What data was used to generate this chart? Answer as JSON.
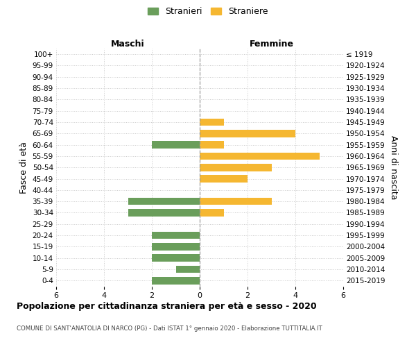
{
  "age_groups": [
    "0-4",
    "5-9",
    "10-14",
    "15-19",
    "20-24",
    "25-29",
    "30-34",
    "35-39",
    "40-44",
    "45-49",
    "50-54",
    "55-59",
    "60-64",
    "65-69",
    "70-74",
    "75-79",
    "80-84",
    "85-89",
    "90-94",
    "95-99",
    "100+"
  ],
  "birth_years": [
    "2015-2019",
    "2010-2014",
    "2005-2009",
    "2000-2004",
    "1995-1999",
    "1990-1994",
    "1985-1989",
    "1980-1984",
    "1975-1979",
    "1970-1974",
    "1965-1969",
    "1960-1964",
    "1955-1959",
    "1950-1954",
    "1945-1949",
    "1940-1944",
    "1935-1939",
    "1930-1934",
    "1925-1929",
    "1920-1924",
    "≤ 1919"
  ],
  "maschi": [
    2,
    1,
    2,
    2,
    2,
    0,
    3,
    3,
    0,
    0,
    0,
    0,
    2,
    0,
    0,
    0,
    0,
    0,
    0,
    0,
    0
  ],
  "femmine": [
    0,
    0,
    0,
    0,
    0,
    0,
    1,
    3,
    0,
    2,
    3,
    5,
    1,
    4,
    1,
    0,
    0,
    0,
    0,
    0,
    0
  ],
  "color_maschi": "#6a9e5b",
  "color_femmine": "#f5b731",
  "title": "Popolazione per cittadinanza straniera per età e sesso - 2020",
  "subtitle": "COMUNE DI SANT'ANATOLIA DI NARCO (PG) - Dati ISTAT 1° gennaio 2020 - Elaborazione TUTTITALIA.IT",
  "ylabel_left": "Fasce di età",
  "ylabel_right": "Anni di nascita",
  "label_maschi": "Maschi",
  "label_femmine": "Femmine",
  "legend_maschi": "Stranieri",
  "legend_femmine": "Straniere",
  "xlim": 6,
  "background_color": "#ffffff",
  "grid_color": "#cccccc"
}
